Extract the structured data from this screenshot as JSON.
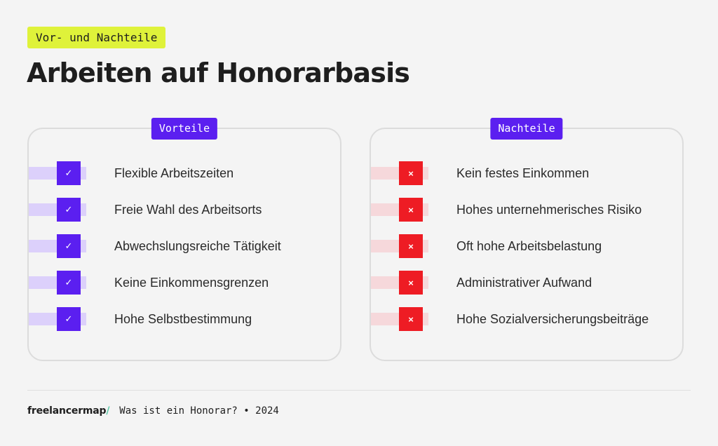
{
  "header": {
    "tag": "Vor- und Nachteile",
    "title": "Arbeiten auf Honorarbasis"
  },
  "pros": {
    "label": "Vorteile",
    "icon": "check-icon",
    "accent": "#5b1ff0",
    "items": [
      "Flexible Arbeitszeiten",
      "Freie Wahl des Arbeitsorts",
      "Abwechslungsreiche Tätigkeit",
      "Keine Einkommensgrenzen",
      "Hohe Selbstbestimmung"
    ]
  },
  "cons": {
    "label": "Nachteile",
    "icon": "cross-icon",
    "accent": "#ee1c24",
    "items": [
      "Kein festes Einkommen",
      "Hohes unternehmerisches Risiko",
      "Oft hohe Arbeitsbelastung",
      "Administrativer Aufwand",
      "Hohe Sozialversicherungsbeiträge"
    ]
  },
  "footer": {
    "brand": "freelancermap",
    "brand_mark": "/",
    "caption": "Was ist ein Honorar? • 2024"
  },
  "colors": {
    "tag_bg": "#dff23a",
    "background": "#f4f4f4"
  }
}
